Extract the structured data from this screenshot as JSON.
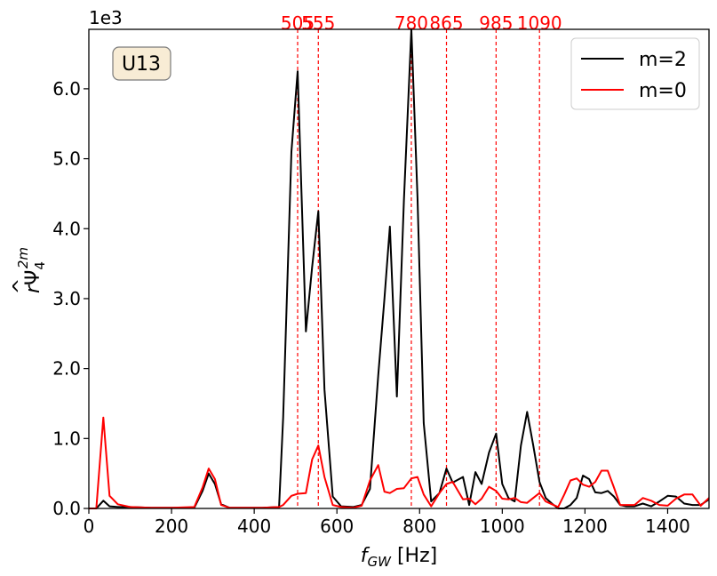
{
  "chart_data": {
    "type": "line",
    "panel_label": "U13",
    "scale_label": "1e3",
    "xlabel_main": "f",
    "xlabel_sub": "GW",
    "xlabel_unit": " [Hz]",
    "ylabel_prefix": "r",
    "ylabel_psi": "Ψ",
    "ylabel_hat": "^",
    "ylabel_sub": "4",
    "ylabel_sup": "2m",
    "xlim": [
      0,
      1500
    ],
    "ylim": [
      0,
      6.85
    ],
    "xticks": [
      0,
      200,
      400,
      600,
      800,
      1000,
      1200,
      1400
    ],
    "xtick_labels": [
      "0",
      "200",
      "400",
      "600",
      "800",
      "1000",
      "1200",
      "1400"
    ],
    "yticks": [
      0,
      1,
      2,
      3,
      4,
      5,
      6
    ],
    "ytick_labels": [
      "0.0",
      "1.0",
      "2.0",
      "3.0",
      "4.0",
      "5.0",
      "6.0"
    ],
    "grid": false,
    "legend_position": "top-right",
    "vlines": {
      "color": "#ff0000",
      "x": [
        505,
        555,
        780,
        865,
        985,
        1090
      ],
      "labels": [
        "505",
        "555",
        "780",
        "865",
        "985",
        "1090"
      ]
    },
    "series": [
      {
        "name": "m=2",
        "color": "#000000",
        "x": [
          0,
          18,
          35,
          50,
          70,
          100,
          150,
          200,
          255,
          275,
          290,
          305,
          320,
          340,
          380,
          420,
          460,
          470,
          490,
          505,
          525,
          540,
          555,
          570,
          590,
          610,
          640,
          660,
          680,
          700,
          715,
          728,
          745,
          762,
          780,
          795,
          810,
          828,
          848,
          865,
          880,
          905,
          920,
          935,
          950,
          968,
          985,
          1000,
          1015,
          1030,
          1045,
          1060,
          1075,
          1090,
          1105,
          1120,
          1135,
          1150,
          1165,
          1180,
          1195,
          1210,
          1225,
          1240,
          1255,
          1270,
          1285,
          1300,
          1320,
          1340,
          1360,
          1380,
          1400,
          1420,
          1440,
          1460,
          1480,
          1500
        ],
        "values": [
          0.0,
          0.0,
          0.11,
          0.03,
          0.02,
          0.02,
          0.01,
          0.01,
          0.01,
          0.25,
          0.5,
          0.35,
          0.06,
          0.01,
          0.01,
          0.01,
          0.02,
          1.3,
          5.1,
          6.25,
          2.53,
          3.45,
          4.25,
          1.7,
          0.17,
          0.03,
          0.02,
          0.05,
          0.28,
          1.9,
          3.0,
          4.03,
          1.6,
          4.4,
          6.85,
          4.45,
          1.22,
          0.1,
          0.22,
          0.57,
          0.37,
          0.45,
          0.05,
          0.52,
          0.35,
          0.8,
          1.07,
          0.35,
          0.15,
          0.1,
          0.9,
          1.38,
          0.9,
          0.38,
          0.15,
          0.07,
          0.0,
          0.0,
          0.05,
          0.15,
          0.47,
          0.42,
          0.23,
          0.22,
          0.25,
          0.17,
          0.05,
          0.03,
          0.03,
          0.07,
          0.03,
          0.1,
          0.18,
          0.17,
          0.07,
          0.05,
          0.05,
          0.13
        ]
      },
      {
        "name": "m=0",
        "color": "#ff0000",
        "x": [
          0,
          18,
          35,
          50,
          70,
          100,
          150,
          200,
          255,
          275,
          290,
          305,
          320,
          340,
          380,
          420,
          460,
          470,
          490,
          505,
          525,
          540,
          555,
          570,
          590,
          610,
          640,
          660,
          680,
          700,
          715,
          728,
          745,
          762,
          780,
          795,
          810,
          828,
          848,
          865,
          880,
          905,
          920,
          935,
          950,
          968,
          985,
          1000,
          1015,
          1030,
          1045,
          1060,
          1075,
          1090,
          1105,
          1120,
          1135,
          1150,
          1165,
          1180,
          1195,
          1210,
          1225,
          1240,
          1255,
          1270,
          1285,
          1300,
          1320,
          1340,
          1360,
          1380,
          1400,
          1420,
          1440,
          1460,
          1480,
          1500
        ],
        "values": [
          0.0,
          0.0,
          1.3,
          0.18,
          0.06,
          0.02,
          0.01,
          0.01,
          0.02,
          0.3,
          0.57,
          0.42,
          0.05,
          0.01,
          0.01,
          0.01,
          0.02,
          0.05,
          0.18,
          0.21,
          0.22,
          0.7,
          0.9,
          0.45,
          0.05,
          0.02,
          0.01,
          0.04,
          0.4,
          0.62,
          0.24,
          0.22,
          0.28,
          0.29,
          0.43,
          0.45,
          0.2,
          0.03,
          0.22,
          0.35,
          0.38,
          0.13,
          0.14,
          0.06,
          0.14,
          0.31,
          0.25,
          0.14,
          0.13,
          0.15,
          0.09,
          0.08,
          0.15,
          0.22,
          0.1,
          0.06,
          0.02,
          0.2,
          0.4,
          0.43,
          0.34,
          0.31,
          0.38,
          0.54,
          0.54,
          0.3,
          0.05,
          0.05,
          0.05,
          0.15,
          0.11,
          0.05,
          0.04,
          0.14,
          0.2,
          0.2,
          0.04,
          0.15
        ]
      }
    ]
  }
}
